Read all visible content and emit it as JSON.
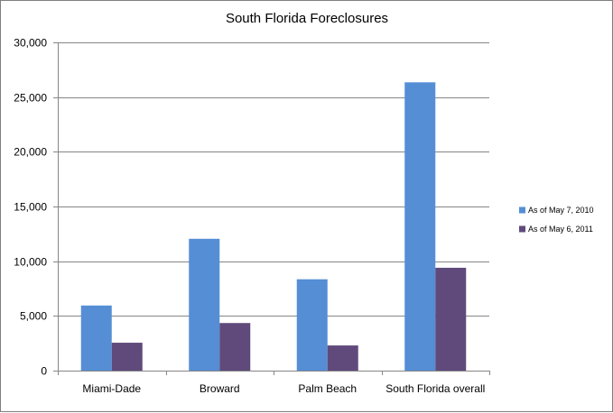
{
  "chart_data": {
    "type": "bar",
    "title": "South  Florida Foreclosures",
    "categories": [
      "Miami-Dade",
      "Broward",
      "Palm Beach",
      "South Florida overall"
    ],
    "series": [
      {
        "name": "As of May 7, 2010",
        "color": "#558ed5",
        "values": [
          5950,
          12050,
          8350,
          26350
        ]
      },
      {
        "name": "As of May 6, 2011",
        "color": "#604a7b",
        "values": [
          2550,
          4350,
          2300,
          9400
        ]
      }
    ],
    "ylim": [
      0,
      30000
    ],
    "yticks": [
      0,
      5000,
      10000,
      15000,
      20000,
      25000,
      30000
    ],
    "ytick_labels": [
      "0",
      "5,000",
      "10,000",
      "15,000",
      "20,000",
      "25,000",
      "30,000"
    ],
    "xlabel": "",
    "ylabel": "",
    "grid": true,
    "legend_position": "right"
  }
}
